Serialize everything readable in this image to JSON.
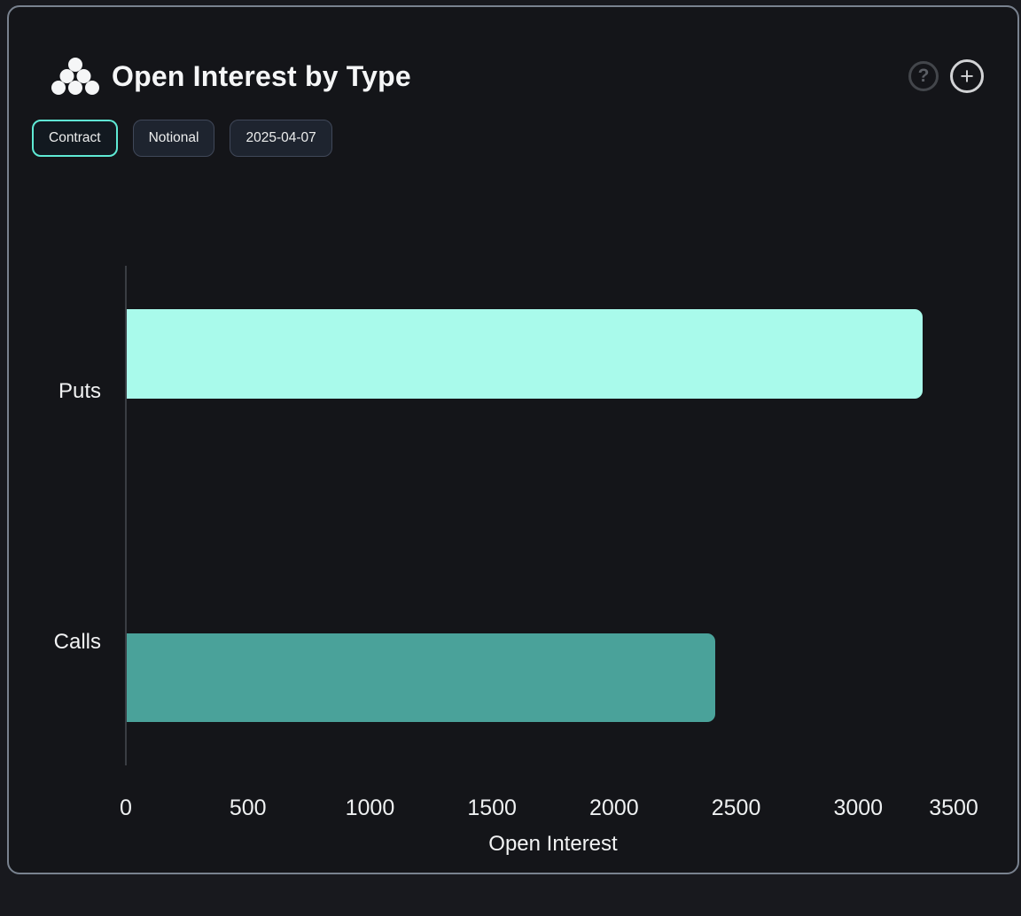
{
  "header": {
    "logo": "dots-pyramid-icon",
    "title": "Open Interest by Type",
    "help_label": "?",
    "add_label": "+"
  },
  "toolbar": {
    "buttons": [
      {
        "label": "Contract",
        "active": true
      },
      {
        "label": "Notional",
        "active": false
      },
      {
        "label": "2025-04-07",
        "active": false
      }
    ]
  },
  "chart_data": {
    "type": "bar",
    "orientation": "horizontal",
    "title": "Open Interest by Type",
    "categories": [
      "Puts",
      "Calls"
    ],
    "values": [
      3260,
      2410
    ],
    "bar_colors": [
      "#a9faeb",
      "#4aa29a"
    ],
    "xlabel": "Open Interest",
    "xticks": [
      0,
      500,
      1000,
      1500,
      2000,
      2500,
      3000,
      3500
    ],
    "xlim": [
      0,
      3500
    ],
    "grid": false,
    "legend": false,
    "axis_color": "#3a3d43",
    "text_color": "#f2f3f4"
  }
}
